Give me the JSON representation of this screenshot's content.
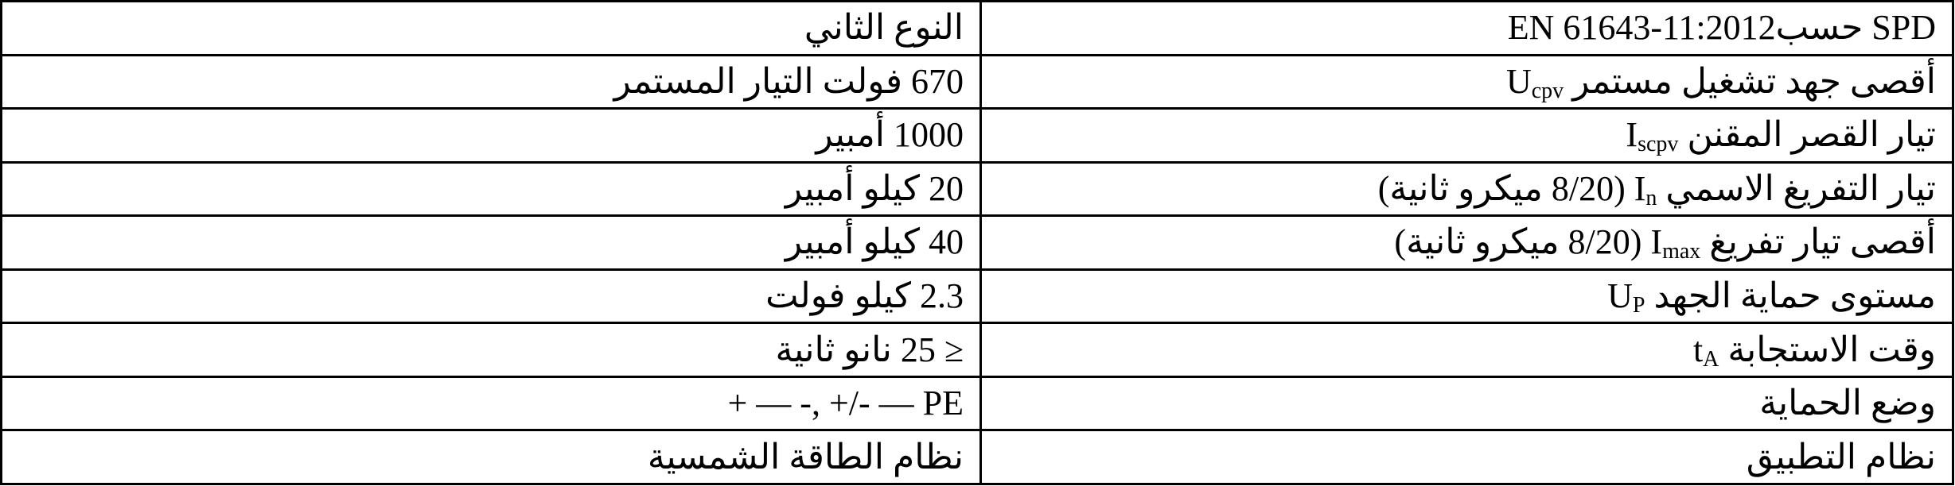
{
  "rows": [
    {
      "label": "SPD حسبEN 61643-11:2012",
      "value": "النوع الثاني"
    },
    {
      "label": "أقصى جهد تشغيل مستمر",
      "symbol": "U",
      "sub": "cpv",
      "value": "670 فولت التيار المستمر"
    },
    {
      "label": "تيار القصر المقنن",
      "symbol": "I",
      "sub": "scpv",
      "value": "1000 أمبير"
    },
    {
      "label": "تيار التفريغ الاسمي",
      "symbol": "I",
      "sub": "n",
      "suffix": "(8/20 ميكرو ثانية)",
      "value": "20 كيلو أمبير"
    },
    {
      "label": "أقصى تيار تفريغ",
      "symbol": "I",
      "sub": "max",
      "suffix": "(8/20 ميكرو ثانية)",
      "value": "40 كيلو أمبير"
    },
    {
      "label": "مستوى حماية الجهد",
      "symbol": "U",
      "sub": "P",
      "value": "2.3 كيلو فولت"
    },
    {
      "label": "وقت الاستجابة",
      "symbol": "t",
      "sub": "A",
      "value_symbol": "≥",
      "value": "25 نانو ثانية"
    },
    {
      "label": "وضع الحماية",
      "value": "+ — -, +/- — PE"
    },
    {
      "label": "نظام التطبيق",
      "value": "نظام الطاقة الشمسية"
    }
  ]
}
